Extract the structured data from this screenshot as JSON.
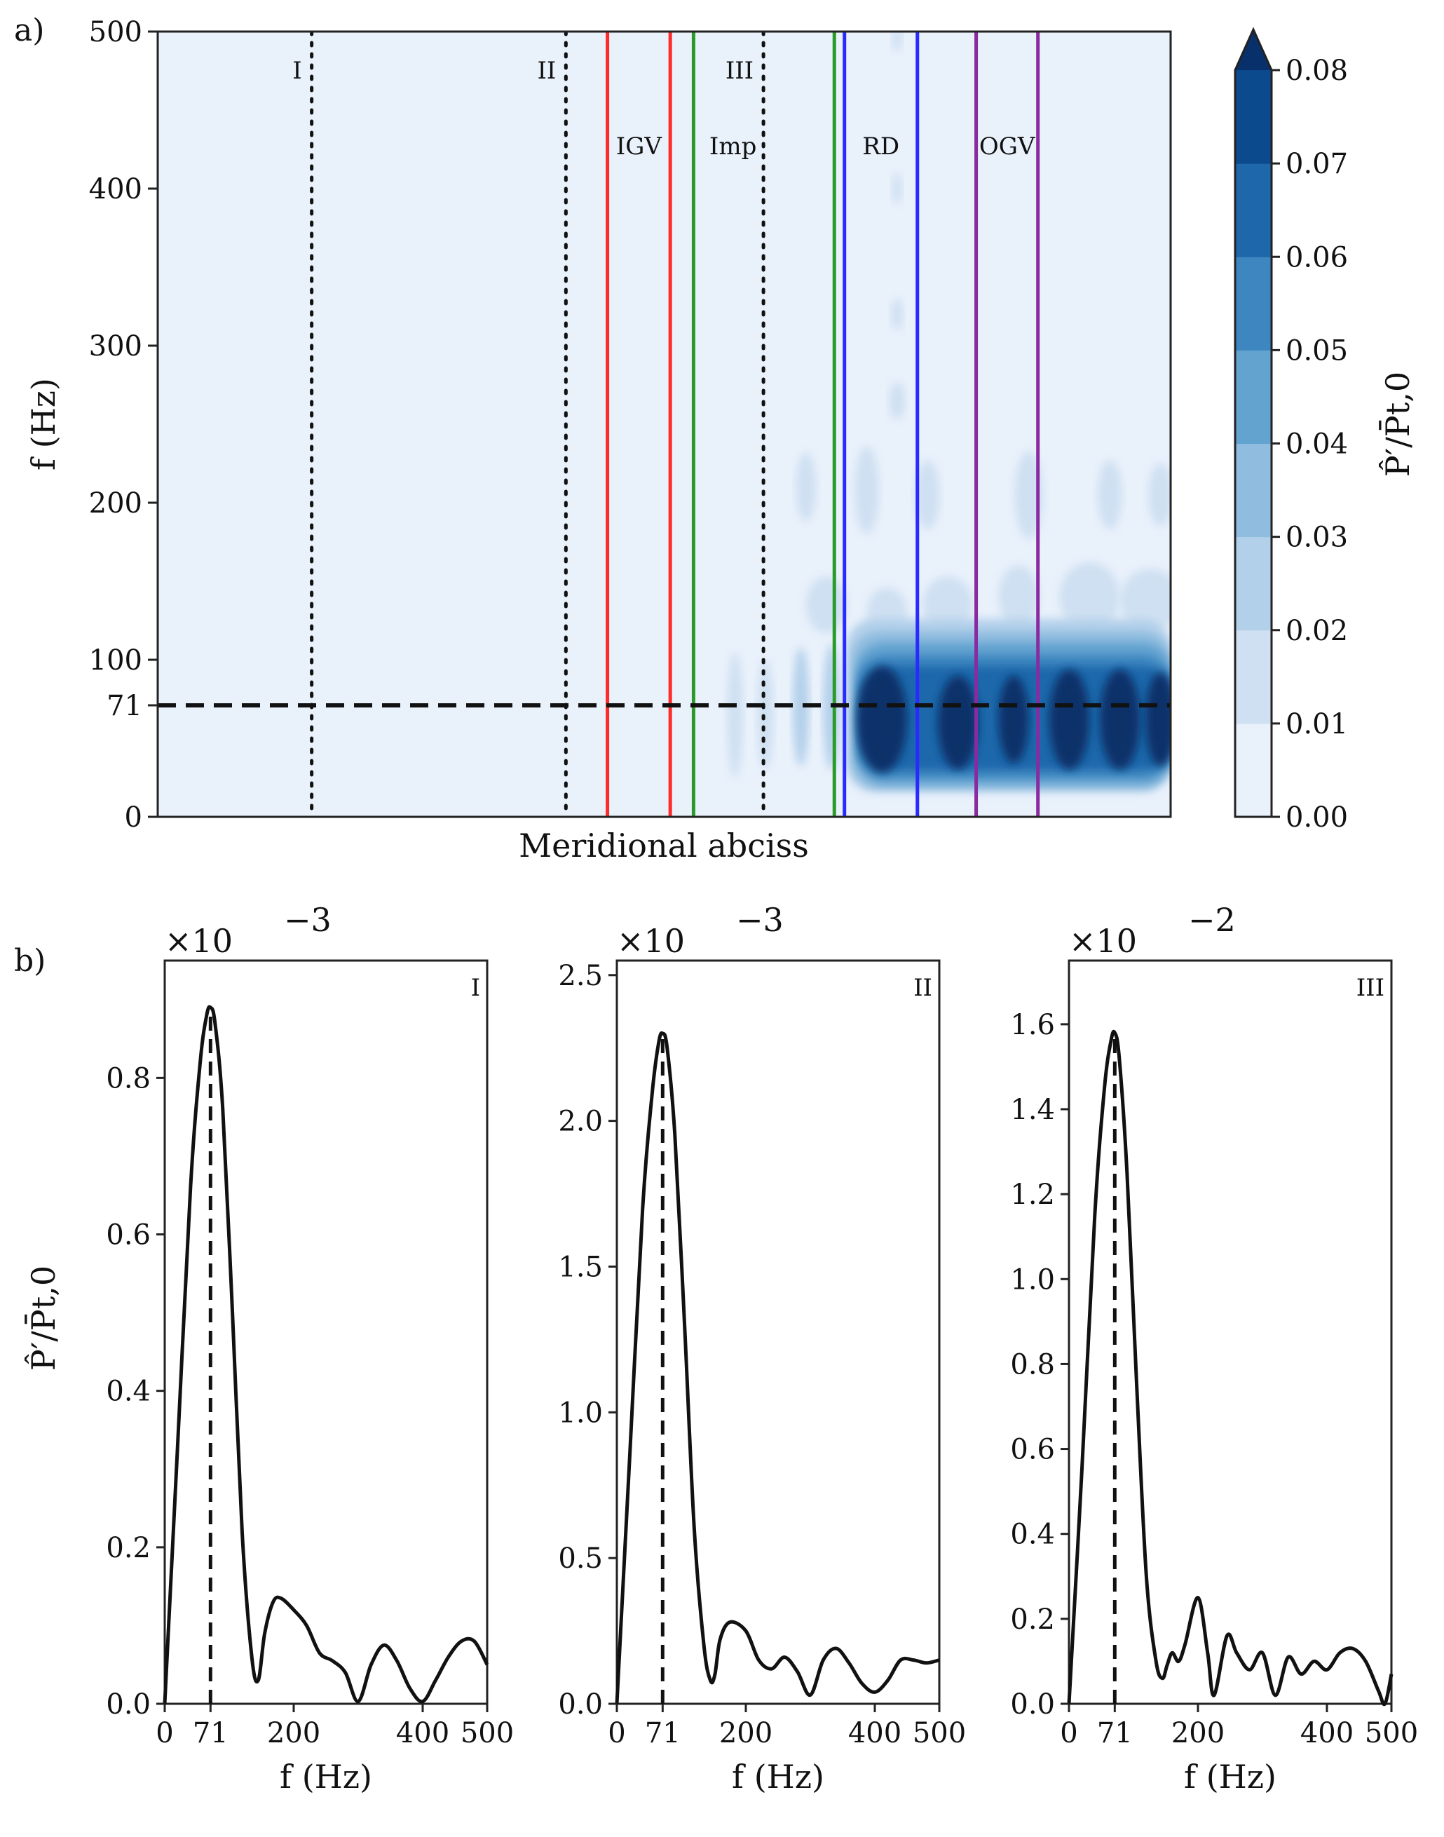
{
  "figure": {
    "panel_a_label": "a)",
    "panel_b_label": "b)"
  },
  "chart_data": [
    {
      "type": "heatmap",
      "panel": "a",
      "xlabel": "Meridional abciss",
      "ylabel": "f (Hz)",
      "ylim": [
        0,
        500
      ],
      "yticks": [
        0,
        71,
        100,
        200,
        300,
        400,
        500
      ],
      "xrange": [
        0,
        1
      ],
      "highlight_frequency": 71,
      "probe_lines": [
        {
          "label": "I",
          "x": 0.152
        },
        {
          "label": "II",
          "x": 0.403
        },
        {
          "label": "III",
          "x": 0.598
        }
      ],
      "zones": [
        {
          "label": "IGV",
          "color": "#ff2a2a",
          "x_start": 0.444,
          "x_end": 0.506
        },
        {
          "label": "Imp",
          "color": "#2a9a2a",
          "x_start": 0.529,
          "x_end": 0.668
        },
        {
          "label": "RD",
          "color": "#2a2aff",
          "x_start": 0.678,
          "x_end": 0.75
        },
        {
          "label": "OGV",
          "color": "#8a2aa0",
          "x_start": 0.808,
          "x_end": 0.869
        }
      ],
      "field_description": "Amplitude concentrated near 71 Hz downstream of impeller; secondary band near 140 Hz",
      "colorbar": {
        "label": "P̂′/P̄t,0",
        "ticks": [
          "0.00",
          "0.01",
          "0.02",
          "0.03",
          "0.04",
          "0.05",
          "0.06",
          "0.07",
          "0.08"
        ],
        "levels": [
          0,
          0.01,
          0.02,
          0.03,
          0.04,
          0.05,
          0.06,
          0.07,
          0.08
        ],
        "colors": [
          "#e9f1fb",
          "#cfe0f2",
          "#b3d0ea",
          "#8fbcdf",
          "#63a3d0",
          "#3d86c0",
          "#1f67ab",
          "#0b4a8c",
          "#08306b"
        ],
        "extend": "max"
      }
    },
    {
      "type": "line",
      "panel": "b-I",
      "annotation": "I",
      "scale_label": "×10",
      "scale_exp": "−3",
      "xlabel": "f (Hz)",
      "ylabel": "P̂′/P̄t,0",
      "xlim": [
        0,
        500
      ],
      "ylim": [
        0,
        0.95
      ],
      "xticks": [
        0,
        71,
        200,
        400,
        500
      ],
      "yticks": [
        "0.0",
        "0.2",
        "0.4",
        "0.6",
        "0.8"
      ],
      "ytick_values": [
        0,
        0.2,
        0.4,
        0.6,
        0.8
      ],
      "peak_frequency": 71,
      "x": [
        0,
        20,
        40,
        55,
        65,
        71,
        78,
        90,
        105,
        120,
        135,
        145,
        155,
        168,
        180,
        200,
        220,
        240,
        260,
        280,
        300,
        320,
        340,
        360,
        380,
        400,
        420,
        440,
        460,
        480,
        500
      ],
      "y": [
        0,
        0.33,
        0.66,
        0.82,
        0.88,
        0.89,
        0.87,
        0.76,
        0.5,
        0.22,
        0.06,
        0.03,
        0.09,
        0.13,
        0.135,
        0.12,
        0.1,
        0.065,
        0.055,
        0.04,
        0.003,
        0.05,
        0.075,
        0.055,
        0.02,
        0.003,
        0.03,
        0.06,
        0.08,
        0.08,
        0.05
      ]
    },
    {
      "type": "line",
      "panel": "b-II",
      "annotation": "II",
      "scale_label": "×10",
      "scale_exp": "−3",
      "xlabel": "f (Hz)",
      "xlim": [
        0,
        500
      ],
      "ylim": [
        0,
        2.55
      ],
      "xticks": [
        0,
        71,
        200,
        400,
        500
      ],
      "yticks": [
        "0.0",
        "0.5",
        "1.0",
        "1.5",
        "2.0",
        "2.5"
      ],
      "ytick_values": [
        0,
        0.5,
        1.0,
        1.5,
        2.0,
        2.5
      ],
      "peak_frequency": 71,
      "x": [
        0,
        20,
        40,
        55,
        65,
        71,
        78,
        90,
        105,
        120,
        135,
        145,
        152,
        160,
        175,
        200,
        220,
        240,
        260,
        280,
        300,
        320,
        340,
        360,
        380,
        400,
        420,
        440,
        460,
        480,
        500
      ],
      "y": [
        0,
        0.85,
        1.7,
        2.1,
        2.27,
        2.3,
        2.25,
        1.95,
        1.3,
        0.6,
        0.2,
        0.08,
        0.1,
        0.22,
        0.28,
        0.25,
        0.15,
        0.12,
        0.16,
        0.11,
        0.03,
        0.15,
        0.19,
        0.14,
        0.07,
        0.04,
        0.08,
        0.15,
        0.15,
        0.14,
        0.15
      ]
    },
    {
      "type": "line",
      "panel": "b-III",
      "annotation": "III",
      "scale_label": "×10",
      "scale_exp": "−2",
      "xlabel": "f (Hz)",
      "xlim": [
        0,
        500
      ],
      "ylim": [
        0,
        1.75
      ],
      "xticks": [
        0,
        71,
        200,
        400,
        500
      ],
      "yticks": [
        "0.0",
        "0.2",
        "0.4",
        "0.6",
        "0.8",
        "1.0",
        "1.2",
        "1.4",
        "1.6"
      ],
      "ytick_values": [
        0,
        0.2,
        0.4,
        0.6,
        0.8,
        1.0,
        1.2,
        1.4,
        1.6
      ],
      "peak_frequency": 71,
      "x": [
        0,
        20,
        40,
        55,
        65,
        71,
        78,
        90,
        105,
        120,
        135,
        145,
        152,
        160,
        170,
        180,
        200,
        215,
        225,
        245,
        260,
        280,
        300,
        320,
        340,
        360,
        380,
        400,
        420,
        440,
        460,
        480,
        490,
        500
      ],
      "y": [
        0,
        0.55,
        1.15,
        1.45,
        1.56,
        1.58,
        1.52,
        1.25,
        0.75,
        0.3,
        0.1,
        0.06,
        0.09,
        0.12,
        0.1,
        0.14,
        0.25,
        0.12,
        0.02,
        0.16,
        0.12,
        0.08,
        0.12,
        0.02,
        0.11,
        0.07,
        0.1,
        0.08,
        0.12,
        0.13,
        0.1,
        0.03,
        0.0,
        0.07
      ]
    }
  ]
}
